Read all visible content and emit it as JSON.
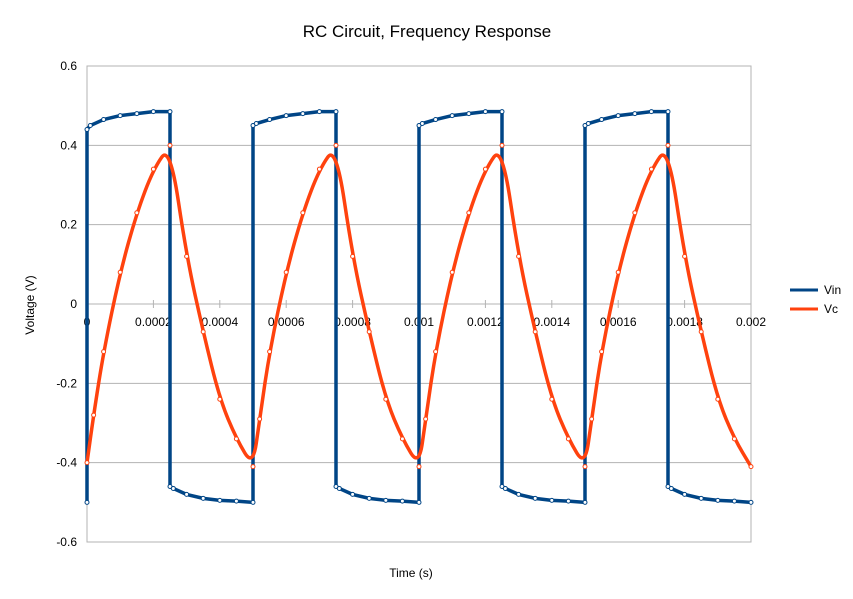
{
  "chart_data": {
    "type": "line",
    "title": "RC Circuit, Frequency Response",
    "xlabel": "Time (s)",
    "ylabel": "Voltage (V)",
    "xlim": [
      0,
      0.002
    ],
    "ylim": [
      -0.6,
      0.6
    ],
    "x_ticks": [
      "0",
      "0.0002",
      "0.0004",
      "0.0006",
      "0.0008",
      "0.001",
      "0.0012",
      "0.0014",
      "0.0016",
      "0.0018",
      "0.002"
    ],
    "y_ticks": [
      "0.6",
      "0.4",
      "0.2",
      "0",
      "-0.2",
      "-0.4",
      "-0.6"
    ],
    "grid": "horizontal",
    "legend_position": "right",
    "series": [
      {
        "name": "Vin",
        "color": "#004586",
        "x": [
          0,
          0,
          1e-05,
          5e-05,
          0.0001,
          0.00015,
          0.0002,
          0.00025,
          0.00025,
          0.00026,
          0.0003,
          0.00035,
          0.0004,
          0.00045,
          0.0005,
          0.0005,
          0.00051,
          0.00055,
          0.0006,
          0.00065,
          0.0007,
          0.00075,
          0.00075,
          0.00076,
          0.0008,
          0.00085,
          0.0009,
          0.00095,
          0.001,
          0.001,
          0.00101,
          0.00105,
          0.0011,
          0.00115,
          0.0012,
          0.00125,
          0.00125,
          0.00126,
          0.0013,
          0.00135,
          0.0014,
          0.00145,
          0.0015,
          0.0015,
          0.00151,
          0.00155,
          0.0016,
          0.00165,
          0.0017,
          0.00175,
          0.00175,
          0.00176,
          0.0018,
          0.00185,
          0.0019,
          0.00195,
          0.002
        ],
        "y": [
          -0.5,
          0.44,
          0.45,
          0.465,
          0.475,
          0.48,
          0.485,
          0.485,
          -0.46,
          -0.465,
          -0.48,
          -0.49,
          -0.495,
          -0.497,
          -0.5,
          0.45,
          0.455,
          0.465,
          0.475,
          0.48,
          0.485,
          0.485,
          -0.46,
          -0.465,
          -0.48,
          -0.49,
          -0.495,
          -0.497,
          -0.5,
          0.45,
          0.455,
          0.465,
          0.475,
          0.48,
          0.485,
          0.485,
          -0.46,
          -0.465,
          -0.48,
          -0.49,
          -0.495,
          -0.497,
          -0.5,
          0.45,
          0.455,
          0.465,
          0.475,
          0.48,
          0.485,
          0.485,
          -0.46,
          -0.465,
          -0.48,
          -0.49,
          -0.495,
          -0.497,
          -0.5
        ]
      },
      {
        "name": "Vc",
        "color": "#ff420e",
        "x": [
          0,
          2e-05,
          5e-05,
          0.0001,
          0.00015,
          0.0002,
          0.00025,
          0.0003,
          0.00035,
          0.0004,
          0.00045,
          0.0005,
          0.00052,
          0.00055,
          0.0006,
          0.00065,
          0.0007,
          0.00075,
          0.0008,
          0.00085,
          0.0009,
          0.00095,
          0.001,
          0.00102,
          0.00105,
          0.0011,
          0.00115,
          0.0012,
          0.00125,
          0.0013,
          0.00135,
          0.0014,
          0.00145,
          0.0015,
          0.00152,
          0.00155,
          0.0016,
          0.00165,
          0.0017,
          0.00175,
          0.0018,
          0.00185,
          0.0019,
          0.00195,
          0.002
        ],
        "y": [
          -0.4,
          -0.28,
          -0.12,
          0.08,
          0.23,
          0.34,
          0.4,
          0.12,
          -0.07,
          -0.24,
          -0.34,
          -0.41,
          -0.29,
          -0.12,
          0.08,
          0.23,
          0.34,
          0.4,
          0.12,
          -0.07,
          -0.24,
          -0.34,
          -0.41,
          -0.29,
          -0.12,
          0.08,
          0.23,
          0.34,
          0.4,
          0.12,
          -0.07,
          -0.24,
          -0.34,
          -0.41,
          -0.29,
          -0.12,
          0.08,
          0.23,
          0.34,
          0.4,
          0.12,
          -0.07,
          -0.24,
          -0.34,
          -0.41
        ]
      }
    ]
  }
}
